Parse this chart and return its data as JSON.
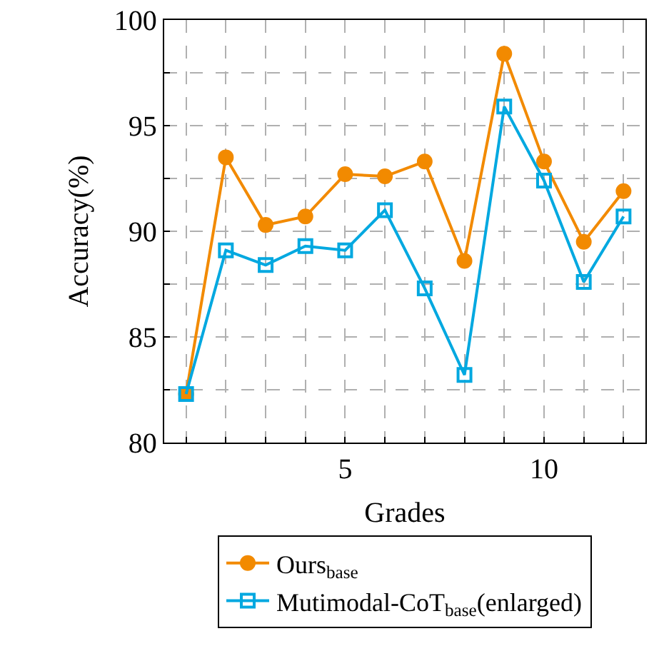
{
  "chart_data": {
    "type": "line",
    "xlabel": "Grades",
    "ylabel": "Accuracy(%)",
    "x": [
      1,
      2,
      3,
      4,
      5,
      6,
      7,
      8,
      9,
      10,
      11,
      12
    ],
    "series": [
      {
        "name": "Ours$_{base}$",
        "color": "#f28a00",
        "marker": "circle",
        "values": [
          82.3,
          93.5,
          90.3,
          90.7,
          92.7,
          92.6,
          93.3,
          88.6,
          98.4,
          93.3,
          89.5,
          91.9
        ]
      },
      {
        "name": "Mutimodal-CoT$_{base}$(enlarged)",
        "color": "#00a8e0",
        "marker": "square",
        "values": [
          82.3,
          89.1,
          88.4,
          89.3,
          89.1,
          91.0,
          87.3,
          83.2,
          95.9,
          92.4,
          87.6,
          90.7
        ]
      }
    ],
    "xlim": [
      0.45,
      12.55
    ],
    "xticks": [
      {
        "value": 1,
        "label": null
      },
      {
        "value": 2,
        "label": null
      },
      {
        "value": 3,
        "label": null
      },
      {
        "value": 4,
        "label": null
      },
      5,
      {
        "value": 6,
        "label": null
      },
      {
        "value": 7,
        "label": null
      },
      {
        "value": 8,
        "label": null
      },
      {
        "value": 9,
        "label": null
      },
      10,
      {
        "value": 11,
        "label": null
      },
      {
        "value": 12,
        "label": null
      }
    ],
    "ylim": [
      80,
      100
    ],
    "yticks": [
      80,
      {
        "value": 82.5,
        "label": null
      },
      85,
      {
        "value": 87.5,
        "label": null
      },
      90,
      {
        "value": 92.5,
        "label": null
      },
      95,
      {
        "value": 97.5,
        "label": null
      },
      100
    ],
    "grid": true,
    "legend": "bottom",
    "line_style": "solid"
  }
}
